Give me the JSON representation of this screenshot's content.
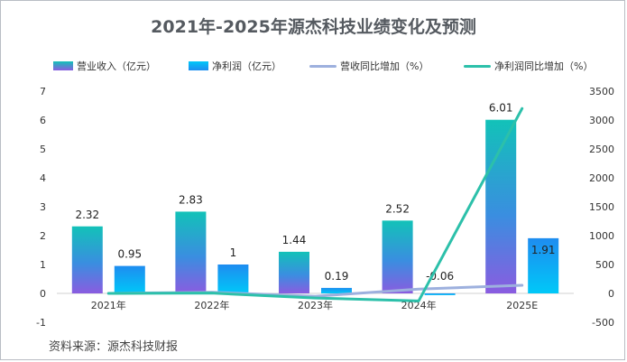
{
  "chart_data": {
    "type": "bar-line-combo",
    "title": "2021年-2025年源杰科技业绩变化及预测",
    "categories": [
      "2021年",
      "2022年",
      "2023年",
      "2024年",
      "2025E"
    ],
    "series": [
      {
        "name": "营业收入（亿元）",
        "type": "bar",
        "axis": "left",
        "values": [
          2.32,
          2.83,
          1.44,
          2.52,
          6.01
        ],
        "labels": [
          "2.32",
          "2.83",
          "1.44",
          "2.52",
          "6.01"
        ]
      },
      {
        "name": "净利润（亿元）",
        "type": "bar",
        "axis": "left",
        "values": [
          0.95,
          1,
          0.19,
          -0.06,
          1.91
        ],
        "labels": [
          "0.95",
          "1",
          "0.19",
          "-0.06",
          "1.91"
        ]
      },
      {
        "name": "营收同比增加（%）",
        "type": "line",
        "axis": "right",
        "values": [
          0,
          20,
          -50,
          75,
          140
        ]
      },
      {
        "name": "净利润同比增加（%）",
        "type": "line",
        "axis": "right",
        "values": [
          0,
          5,
          -80,
          -130,
          3200
        ]
      }
    ],
    "y_left": {
      "min": -1,
      "max": 7,
      "ticks": [
        -1,
        0,
        1,
        2,
        3,
        4,
        5,
        6,
        7
      ]
    },
    "y_right": {
      "min": -500,
      "max": 3500,
      "ticks": [
        -500,
        0,
        500,
        1000,
        1500,
        2000,
        2500,
        3000,
        3500
      ]
    },
    "legend_position": "top",
    "colors": {
      "revenue_top": "#12c2b8",
      "revenue_bottom": "#8a5ce0",
      "profit_top": "#00c8f8",
      "profit_bottom": "#1e8cf0",
      "revenue_line": "#9db0de",
      "profit_line": "#2cc0aa"
    }
  },
  "source": "资料来源：源杰科技财报"
}
